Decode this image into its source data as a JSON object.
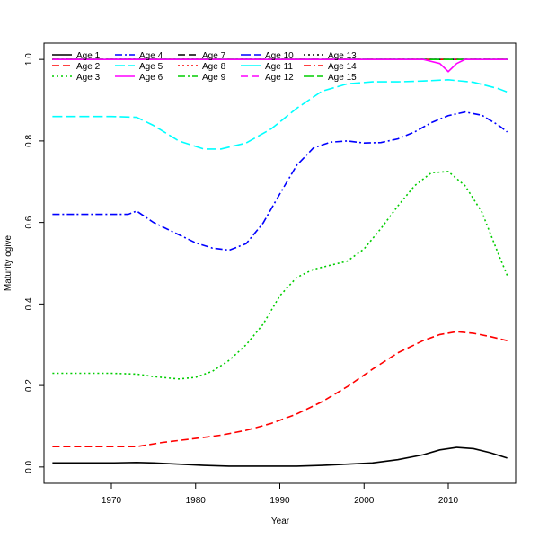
{
  "chart_data": {
    "type": "line",
    "xlabel": "Year",
    "ylabel": "Maturity ogive",
    "xlim": [
      1962,
      2018
    ],
    "ylim": [
      -0.04,
      1.04
    ],
    "x_ticks": [
      1970,
      1980,
      1990,
      2000,
      2010
    ],
    "y_ticks": [
      0.0,
      0.2,
      0.4,
      0.6,
      0.8,
      1.0
    ],
    "x_tick_labels": [
      "1970",
      "1980",
      "1990",
      "2000",
      "2010"
    ],
    "y_tick_labels": [
      "0.0",
      "0.2",
      "0.4",
      "0.6",
      "0.8",
      "1.0"
    ],
    "legend_position": "top-left",
    "legend_columns": 5,
    "grid": false,
    "series": [
      {
        "name": "Age 1",
        "color": "#000000",
        "dash": "solid",
        "points": [
          [
            1963,
            0.01
          ],
          [
            1970,
            0.01
          ],
          [
            1973,
            0.011
          ],
          [
            1975,
            0.01
          ],
          [
            1978,
            0.007
          ],
          [
            1981,
            0.004
          ],
          [
            1984,
            0.002
          ],
          [
            1987,
            0.002
          ],
          [
            1992,
            0.002
          ],
          [
            1995,
            0.004
          ],
          [
            1998,
            0.007
          ],
          [
            2001,
            0.01
          ],
          [
            2004,
            0.018
          ],
          [
            2007,
            0.03
          ],
          [
            2009,
            0.042
          ],
          [
            2011,
            0.048
          ],
          [
            2013,
            0.045
          ],
          [
            2015,
            0.035
          ],
          [
            2017,
            0.022
          ]
        ]
      },
      {
        "name": "Age 2",
        "color": "#ff0000",
        "dash": "dash",
        "points": [
          [
            1963,
            0.05
          ],
          [
            1970,
            0.05
          ],
          [
            1973,
            0.05
          ],
          [
            1976,
            0.06
          ],
          [
            1980,
            0.07
          ],
          [
            1983,
            0.078
          ],
          [
            1986,
            0.09
          ],
          [
            1989,
            0.107
          ],
          [
            1992,
            0.13
          ],
          [
            1995,
            0.16
          ],
          [
            1998,
            0.197
          ],
          [
            2001,
            0.24
          ],
          [
            2004,
            0.28
          ],
          [
            2007,
            0.31
          ],
          [
            2009,
            0.325
          ],
          [
            2011,
            0.332
          ],
          [
            2013,
            0.328
          ],
          [
            2015,
            0.32
          ],
          [
            2017,
            0.31
          ]
        ]
      },
      {
        "name": "Age 3",
        "color": "#00cd00",
        "dash": "dot",
        "points": [
          [
            1963,
            0.23
          ],
          [
            1970,
            0.23
          ],
          [
            1973,
            0.228
          ],
          [
            1975,
            0.222
          ],
          [
            1978,
            0.216
          ],
          [
            1980,
            0.22
          ],
          [
            1982,
            0.235
          ],
          [
            1984,
            0.262
          ],
          [
            1986,
            0.3
          ],
          [
            1988,
            0.35
          ],
          [
            1990,
            0.42
          ],
          [
            1992,
            0.465
          ],
          [
            1994,
            0.485
          ],
          [
            1996,
            0.495
          ],
          [
            1998,
            0.505
          ],
          [
            2000,
            0.535
          ],
          [
            2002,
            0.585
          ],
          [
            2004,
            0.64
          ],
          [
            2006,
            0.69
          ],
          [
            2008,
            0.722
          ],
          [
            2010,
            0.725
          ],
          [
            2012,
            0.69
          ],
          [
            2014,
            0.625
          ],
          [
            2016,
            0.52
          ],
          [
            2017,
            0.47
          ]
        ]
      },
      {
        "name": "Age 4",
        "color": "#0000ff",
        "dash": "dashdot",
        "points": [
          [
            1963,
            0.62
          ],
          [
            1970,
            0.62
          ],
          [
            1972,
            0.62
          ],
          [
            1973,
            0.628
          ],
          [
            1975,
            0.6
          ],
          [
            1978,
            0.57
          ],
          [
            1980,
            0.55
          ],
          [
            1982,
            0.537
          ],
          [
            1984,
            0.532
          ],
          [
            1986,
            0.548
          ],
          [
            1988,
            0.598
          ],
          [
            1990,
            0.67
          ],
          [
            1992,
            0.74
          ],
          [
            1994,
            0.783
          ],
          [
            1996,
            0.797
          ],
          [
            1998,
            0.8
          ],
          [
            2000,
            0.795
          ],
          [
            2002,
            0.796
          ],
          [
            2004,
            0.805
          ],
          [
            2006,
            0.822
          ],
          [
            2008,
            0.845
          ],
          [
            2010,
            0.862
          ],
          [
            2012,
            0.871
          ],
          [
            2014,
            0.863
          ],
          [
            2016,
            0.838
          ],
          [
            2017,
            0.822
          ]
        ]
      },
      {
        "name": "Age 5",
        "color": "#00ffff",
        "dash": "longdash",
        "points": [
          [
            1963,
            0.86
          ],
          [
            1970,
            0.86
          ],
          [
            1973,
            0.858
          ],
          [
            1975,
            0.838
          ],
          [
            1978,
            0.8
          ],
          [
            1981,
            0.78
          ],
          [
            1983,
            0.78
          ],
          [
            1986,
            0.795
          ],
          [
            1989,
            0.83
          ],
          [
            1992,
            0.88
          ],
          [
            1995,
            0.922
          ],
          [
            1998,
            0.94
          ],
          [
            2001,
            0.945
          ],
          [
            2004,
            0.945
          ],
          [
            2007,
            0.947
          ],
          [
            2010,
            0.95
          ],
          [
            2013,
            0.944
          ],
          [
            2016,
            0.928
          ],
          [
            2017,
            0.92
          ]
        ]
      },
      {
        "name": "Age 6",
        "color": "#ff00ff",
        "dash": "solid",
        "points": [
          [
            1963,
            1.0
          ],
          [
            2007,
            1.0
          ],
          [
            2009,
            0.99
          ],
          [
            2010,
            0.97
          ],
          [
            2011,
            0.99
          ],
          [
            2012,
            1.0
          ],
          [
            2017,
            1.0
          ]
        ]
      },
      {
        "name": "Age 7",
        "color": "#000000",
        "dash": "dash",
        "points": [
          [
            1963,
            1.0
          ],
          [
            2017,
            1.0
          ]
        ]
      },
      {
        "name": "Age 8",
        "color": "#ff0000",
        "dash": "dot",
        "points": [
          [
            1963,
            1.0
          ],
          [
            2017,
            1.0
          ]
        ]
      },
      {
        "name": "Age 9",
        "color": "#00cd00",
        "dash": "dashdot",
        "points": [
          [
            1963,
            1.0
          ],
          [
            2017,
            1.0
          ]
        ]
      },
      {
        "name": "Age 10",
        "color": "#0000ff",
        "dash": "longdash",
        "points": [
          [
            1963,
            1.0
          ],
          [
            2017,
            1.0
          ]
        ]
      },
      {
        "name": "Age 11",
        "color": "#00ffff",
        "dash": "solid",
        "points": [
          [
            1963,
            1.0
          ],
          [
            2017,
            1.0
          ]
        ]
      },
      {
        "name": "Age 12",
        "color": "#ff00ff",
        "dash": "dash",
        "points": [
          [
            1963,
            1.0
          ],
          [
            2017,
            1.0
          ]
        ]
      },
      {
        "name": "Age 13",
        "color": "#000000",
        "dash": "dot",
        "points": [
          [
            1963,
            1.0
          ],
          [
            2017,
            1.0
          ]
        ]
      },
      {
        "name": "Age 14",
        "color": "#ff0000",
        "dash": "dashdot",
        "points": [
          [
            1963,
            1.0
          ],
          [
            2017,
            1.0
          ]
        ]
      },
      {
        "name": "Age 15",
        "color": "#00cd00",
        "dash": "longdash",
        "points": [
          [
            1963,
            1.0
          ],
          [
            2017,
            1.0
          ]
        ]
      }
    ]
  }
}
